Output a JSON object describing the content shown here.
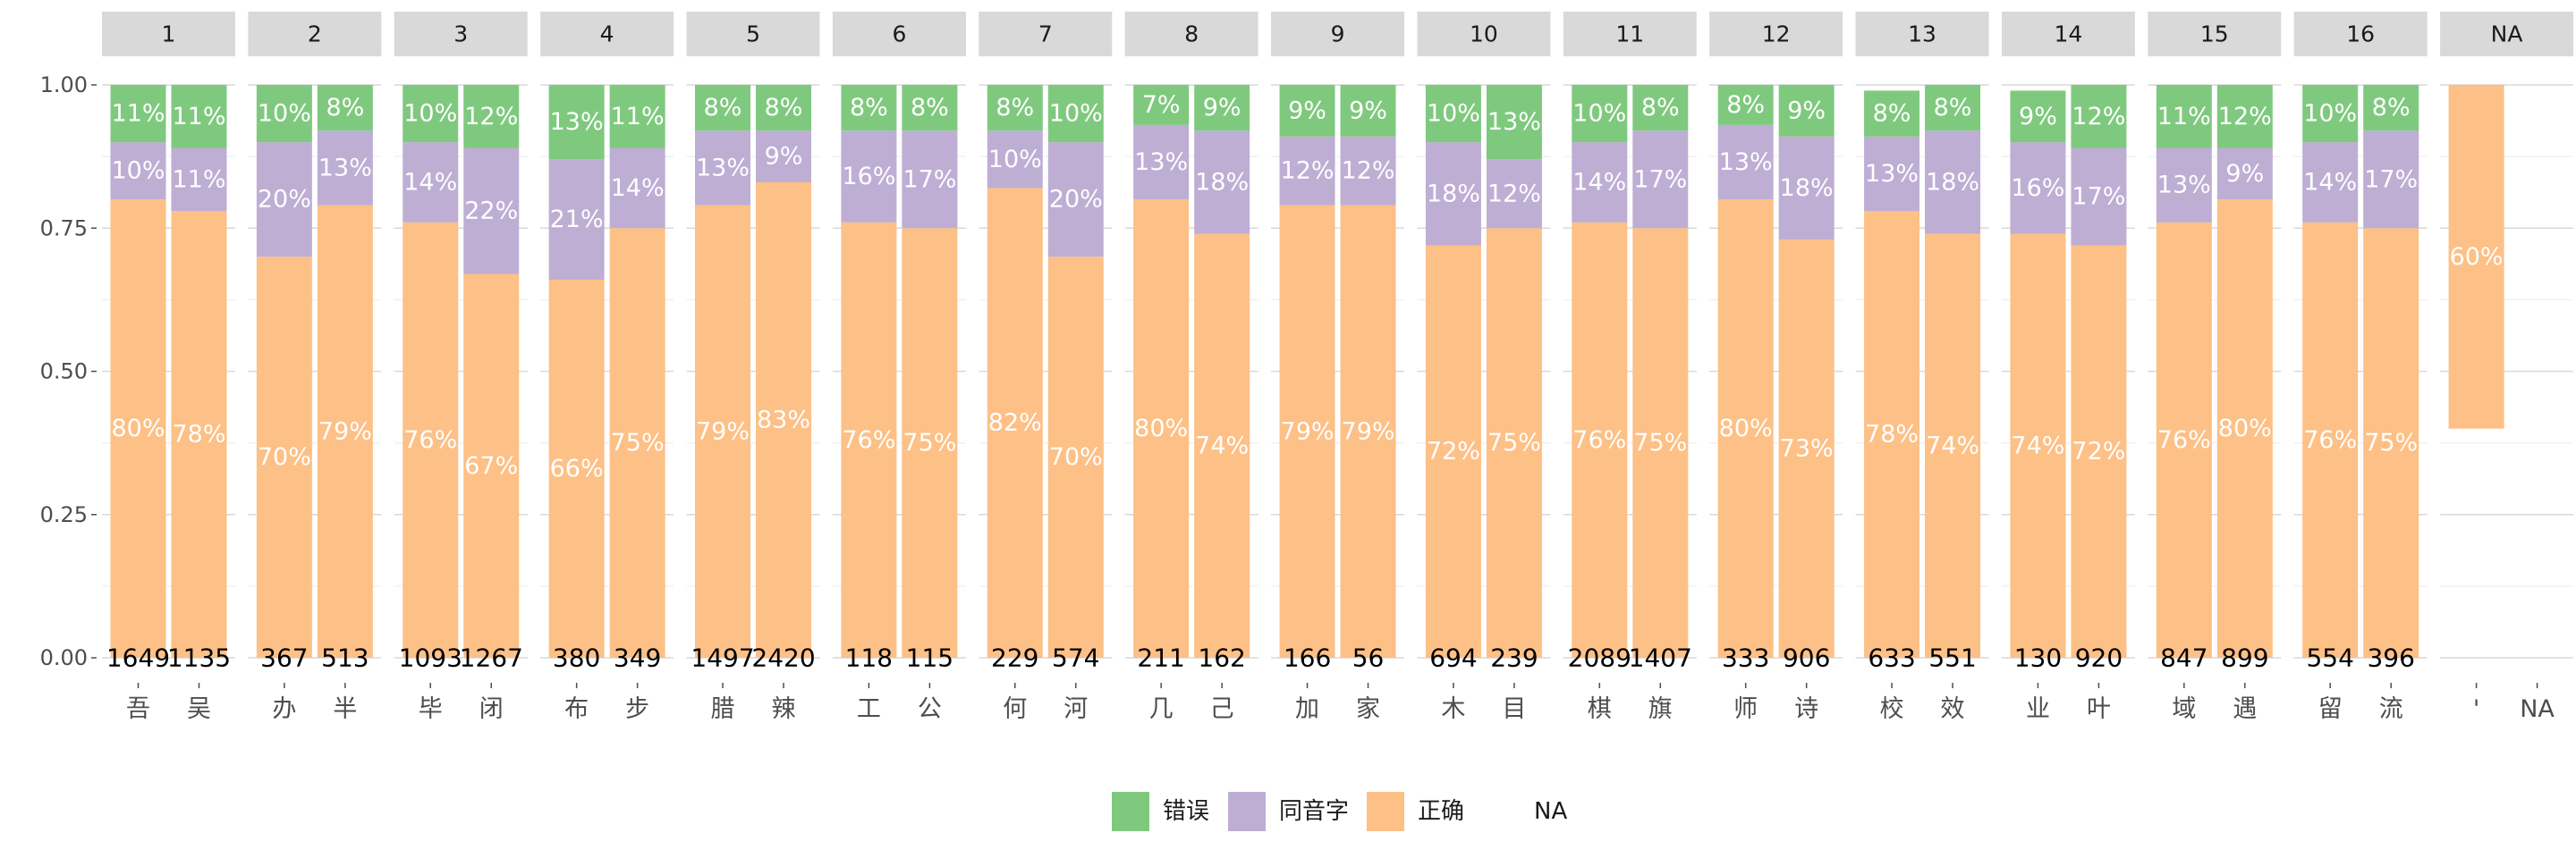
{
  "chart_data": {
    "type": "bar",
    "stacked": true,
    "facet_labels": [
      "1",
      "2",
      "3",
      "4",
      "5",
      "6",
      "7",
      "8",
      "9",
      "10",
      "11",
      "12",
      "13",
      "14",
      "15",
      "16",
      "NA"
    ],
    "ylim": [
      0,
      1
    ],
    "y_ticks": [
      "0.00",
      "0.25",
      "0.50",
      "0.75",
      "1.00"
    ],
    "legend": [
      {
        "name": "错误",
        "color": "#7fc97f"
      },
      {
        "name": "同音字",
        "color": "#beaed4"
      },
      {
        "name": "正确",
        "color": "#fdc086"
      },
      {
        "name": "NA",
        "color": null
      }
    ],
    "panels": [
      {
        "facet": "1",
        "bars": [
          {
            "char": "吾",
            "n": "1649",
            "segments": [
              {
                "cat": "正确",
                "value": 0.8,
                "label": "80%"
              },
              {
                "cat": "同音字",
                "value": 0.1,
                "label": "10%"
              },
              {
                "cat": "错误",
                "value": 0.11,
                "label": "11%"
              }
            ]
          },
          {
            "char": "吴",
            "n": "1135",
            "segments": [
              {
                "cat": "正确",
                "value": 0.78,
                "label": "78%"
              },
              {
                "cat": "同音字",
                "value": 0.11,
                "label": "11%"
              },
              {
                "cat": "错误",
                "value": 0.11,
                "label": "11%"
              }
            ]
          }
        ]
      },
      {
        "facet": "2",
        "bars": [
          {
            "char": "办",
            "n": "367",
            "segments": [
              {
                "cat": "正确",
                "value": 0.7,
                "label": "70%"
              },
              {
                "cat": "同音字",
                "value": 0.2,
                "label": "20%"
              },
              {
                "cat": "错误",
                "value": 0.1,
                "label": "10%"
              }
            ]
          },
          {
            "char": "半",
            "n": "513",
            "segments": [
              {
                "cat": "正确",
                "value": 0.79,
                "label": "79%"
              },
              {
                "cat": "同音字",
                "value": 0.13,
                "label": "13%"
              },
              {
                "cat": "错误",
                "value": 0.08,
                "label": "8%"
              }
            ]
          }
        ]
      },
      {
        "facet": "3",
        "bars": [
          {
            "char": "毕",
            "n": "1093",
            "segments": [
              {
                "cat": "正确",
                "value": 0.76,
                "label": "76%"
              },
              {
                "cat": "同音字",
                "value": 0.14,
                "label": "14%"
              },
              {
                "cat": "错误",
                "value": 0.1,
                "label": "10%"
              }
            ]
          },
          {
            "char": "闭",
            "n": "1267",
            "segments": [
              {
                "cat": "正确",
                "value": 0.67,
                "label": "67%"
              },
              {
                "cat": "同音字",
                "value": 0.22,
                "label": "22%"
              },
              {
                "cat": "错误",
                "value": 0.12,
                "label": "12%"
              }
            ]
          }
        ]
      },
      {
        "facet": "4",
        "bars": [
          {
            "char": "布",
            "n": "380",
            "segments": [
              {
                "cat": "正确",
                "value": 0.66,
                "label": "66%"
              },
              {
                "cat": "同音字",
                "value": 0.21,
                "label": "21%"
              },
              {
                "cat": "错误",
                "value": 0.13,
                "label": "13%"
              }
            ]
          },
          {
            "char": "步",
            "n": "349",
            "segments": [
              {
                "cat": "正确",
                "value": 0.75,
                "label": "75%"
              },
              {
                "cat": "同音字",
                "value": 0.14,
                "label": "14%"
              },
              {
                "cat": "错误",
                "value": 0.11,
                "label": "11%"
              }
            ]
          }
        ]
      },
      {
        "facet": "5",
        "bars": [
          {
            "char": "腊",
            "n": "1497",
            "segments": [
              {
                "cat": "正确",
                "value": 0.79,
                "label": "79%"
              },
              {
                "cat": "同音字",
                "value": 0.13,
                "label": "13%"
              },
              {
                "cat": "错误",
                "value": 0.08,
                "label": "8%"
              }
            ]
          },
          {
            "char": "辣",
            "n": "2420",
            "segments": [
              {
                "cat": "正确",
                "value": 0.83,
                "label": "83%"
              },
              {
                "cat": "同音字",
                "value": 0.09,
                "label": "9%"
              },
              {
                "cat": "错误",
                "value": 0.08,
                "label": "8%"
              }
            ]
          }
        ]
      },
      {
        "facet": "6",
        "bars": [
          {
            "char": "工",
            "n": "118",
            "segments": [
              {
                "cat": "正确",
                "value": 0.76,
                "label": "76%"
              },
              {
                "cat": "同音字",
                "value": 0.16,
                "label": "16%"
              },
              {
                "cat": "错误",
                "value": 0.08,
                "label": "8%"
              }
            ]
          },
          {
            "char": "公",
            "n": "115",
            "segments": [
              {
                "cat": "正确",
                "value": 0.75,
                "label": "75%"
              },
              {
                "cat": "同音字",
                "value": 0.17,
                "label": "17%"
              },
              {
                "cat": "错误",
                "value": 0.08,
                "label": "8%"
              }
            ]
          }
        ]
      },
      {
        "facet": "7",
        "bars": [
          {
            "char": "何",
            "n": "229",
            "segments": [
              {
                "cat": "正确",
                "value": 0.82,
                "label": "82%"
              },
              {
                "cat": "同音字",
                "value": 0.1,
                "label": "10%"
              },
              {
                "cat": "错误",
                "value": 0.08,
                "label": "8%"
              }
            ]
          },
          {
            "char": "河",
            "n": "574",
            "segments": [
              {
                "cat": "正确",
                "value": 0.7,
                "label": "70%"
              },
              {
                "cat": "同音字",
                "value": 0.2,
                "label": "20%"
              },
              {
                "cat": "错误",
                "value": 0.1,
                "label": "10%"
              }
            ]
          }
        ]
      },
      {
        "facet": "8",
        "bars": [
          {
            "char": "几",
            "n": "211",
            "segments": [
              {
                "cat": "正确",
                "value": 0.8,
                "label": "80%"
              },
              {
                "cat": "同音字",
                "value": 0.13,
                "label": "13%"
              },
              {
                "cat": "错误",
                "value": 0.07,
                "label": "7%"
              }
            ]
          },
          {
            "char": "己",
            "n": "162",
            "segments": [
              {
                "cat": "正确",
                "value": 0.74,
                "label": "74%"
              },
              {
                "cat": "同音字",
                "value": 0.18,
                "label": "18%"
              },
              {
                "cat": "错误",
                "value": 0.09,
                "label": "9%"
              }
            ]
          }
        ]
      },
      {
        "facet": "9",
        "bars": [
          {
            "char": "加",
            "n": "166",
            "segments": [
              {
                "cat": "正确",
                "value": 0.79,
                "label": "79%"
              },
              {
                "cat": "同音字",
                "value": 0.12,
                "label": "12%"
              },
              {
                "cat": "错误",
                "value": 0.09,
                "label": "9%"
              }
            ]
          },
          {
            "char": "家",
            "n": "56",
            "segments": [
              {
                "cat": "正确",
                "value": 0.79,
                "label": "79%"
              },
              {
                "cat": "同音字",
                "value": 0.12,
                "label": "12%"
              },
              {
                "cat": "错误",
                "value": 0.09,
                "label": "9%"
              }
            ]
          }
        ]
      },
      {
        "facet": "10",
        "bars": [
          {
            "char": "木",
            "n": "694",
            "segments": [
              {
                "cat": "正确",
                "value": 0.72,
                "label": "72%"
              },
              {
                "cat": "同音字",
                "value": 0.18,
                "label": "18%"
              },
              {
                "cat": "错误",
                "value": 0.1,
                "label": "10%"
              }
            ]
          },
          {
            "char": "目",
            "n": "239",
            "segments": [
              {
                "cat": "正确",
                "value": 0.75,
                "label": "75%"
              },
              {
                "cat": "同音字",
                "value": 0.12,
                "label": "12%"
              },
              {
                "cat": "错误",
                "value": 0.13,
                "label": "13%"
              }
            ]
          }
        ]
      },
      {
        "facet": "11",
        "bars": [
          {
            "char": "棋",
            "n": "2089",
            "segments": [
              {
                "cat": "正确",
                "value": 0.76,
                "label": "76%"
              },
              {
                "cat": "同音字",
                "value": 0.14,
                "label": "14%"
              },
              {
                "cat": "错误",
                "value": 0.1,
                "label": "10%"
              }
            ]
          },
          {
            "char": "旗",
            "n": "1407",
            "segments": [
              {
                "cat": "正确",
                "value": 0.75,
                "label": "75%"
              },
              {
                "cat": "同音字",
                "value": 0.17,
                "label": "17%"
              },
              {
                "cat": "错误",
                "value": 0.08,
                "label": "8%"
              }
            ]
          }
        ]
      },
      {
        "facet": "12",
        "bars": [
          {
            "char": "师",
            "n": "333",
            "segments": [
              {
                "cat": "正确",
                "value": 0.8,
                "label": "80%"
              },
              {
                "cat": "同音字",
                "value": 0.13,
                "label": "13%"
              },
              {
                "cat": "错误",
                "value": 0.08,
                "label": "8%"
              }
            ]
          },
          {
            "char": "诗",
            "n": "906",
            "segments": [
              {
                "cat": "正确",
                "value": 0.73,
                "label": "73%"
              },
              {
                "cat": "同音字",
                "value": 0.18,
                "label": "18%"
              },
              {
                "cat": "错误",
                "value": 0.09,
                "label": "9%"
              }
            ]
          }
        ]
      },
      {
        "facet": "13",
        "bars": [
          {
            "char": "校",
            "n": "633",
            "segments": [
              {
                "cat": "正确",
                "value": 0.78,
                "label": "78%"
              },
              {
                "cat": "同音字",
                "value": 0.13,
                "label": "13%"
              },
              {
                "cat": "错误",
                "value": 0.08,
                "label": "8%"
              }
            ]
          },
          {
            "char": "效",
            "n": "551",
            "segments": [
              {
                "cat": "正确",
                "value": 0.74,
                "label": "74%"
              },
              {
                "cat": "同音字",
                "value": 0.18,
                "label": "18%"
              },
              {
                "cat": "错误",
                "value": 0.08,
                "label": "8%"
              }
            ]
          }
        ]
      },
      {
        "facet": "14",
        "bars": [
          {
            "char": "业",
            "n": "130",
            "segments": [
              {
                "cat": "正确",
                "value": 0.74,
                "label": "74%"
              },
              {
                "cat": "同音字",
                "value": 0.16,
                "label": "16%"
              },
              {
                "cat": "错误",
                "value": 0.09,
                "label": "9%"
              }
            ]
          },
          {
            "char": "叶",
            "n": "920",
            "segments": [
              {
                "cat": "正确",
                "value": 0.72,
                "label": "72%"
              },
              {
                "cat": "同音字",
                "value": 0.17,
                "label": "17%"
              },
              {
                "cat": "错误",
                "value": 0.12,
                "label": "12%"
              }
            ]
          }
        ]
      },
      {
        "facet": "15",
        "bars": [
          {
            "char": "域",
            "n": "847",
            "segments": [
              {
                "cat": "正确",
                "value": 0.76,
                "label": "76%"
              },
              {
                "cat": "同音字",
                "value": 0.13,
                "label": "13%"
              },
              {
                "cat": "错误",
                "value": 0.11,
                "label": "11%"
              }
            ]
          },
          {
            "char": "遇",
            "n": "899",
            "segments": [
              {
                "cat": "正确",
                "value": 0.8,
                "label": "80%"
              },
              {
                "cat": "同音字",
                "value": 0.09,
                "label": "9%"
              },
              {
                "cat": "错误",
                "value": 0.12,
                "label": "12%"
              }
            ]
          }
        ]
      },
      {
        "facet": "16",
        "bars": [
          {
            "char": "留",
            "n": "554",
            "segments": [
              {
                "cat": "正确",
                "value": 0.76,
                "label": "76%"
              },
              {
                "cat": "同音字",
                "value": 0.14,
                "label": "14%"
              },
              {
                "cat": "错误",
                "value": 0.1,
                "label": "10%"
              }
            ]
          },
          {
            "char": "流",
            "n": "396",
            "segments": [
              {
                "cat": "正确",
                "value": 0.75,
                "label": "75%"
              },
              {
                "cat": "同音字",
                "value": 0.17,
                "label": "17%"
              },
              {
                "cat": "错误",
                "value": 0.08,
                "label": "8%"
              }
            ]
          }
        ]
      },
      {
        "facet": "NA",
        "bars": [
          {
            "char": "'",
            "n": "",
            "segments": [
              {
                "cat": "正确",
                "value": 0.6,
                "label": "60%",
                "base": 0.4
              }
            ]
          },
          {
            "char": "NA",
            "n": "",
            "segments": []
          }
        ]
      }
    ]
  }
}
